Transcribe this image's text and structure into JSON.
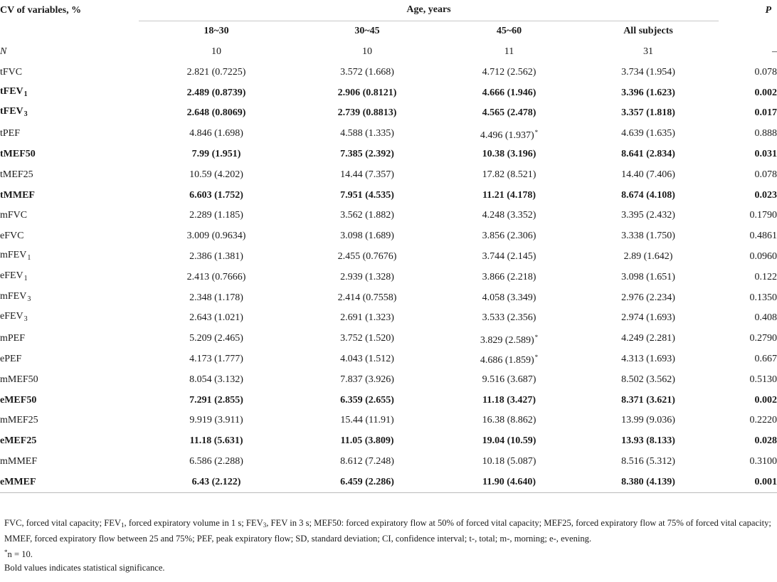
{
  "table": {
    "header": {
      "first_col": "CV of variables, %",
      "age_group": "Age, years",
      "p_col": "P",
      "groups": [
        "18~30",
        "30~45",
        "45~60",
        "All subjects"
      ]
    },
    "rows": [
      {
        "label": "N",
        "sub": "",
        "italic": true,
        "bold": false,
        "values": [
          "10",
          "10",
          "11",
          "31"
        ],
        "star": [
          false,
          false,
          false,
          false
        ],
        "p": "–"
      },
      {
        "label": "tFVC",
        "sub": "",
        "italic": false,
        "bold": false,
        "values": [
          "2.821 (0.7225)",
          "3.572 (1.668)",
          "4.712 (2.562)",
          "3.734 (1.954)"
        ],
        "star": [
          false,
          false,
          false,
          false
        ],
        "p": "0.078"
      },
      {
        "label": "tFEV",
        "sub": "1",
        "italic": false,
        "bold": true,
        "values": [
          "2.489 (0.8739)",
          "2.906 (0.8121)",
          "4.666 (1.946)",
          "3.396 (1.623)"
        ],
        "star": [
          false,
          false,
          false,
          false
        ],
        "p": "0.002"
      },
      {
        "label": "tFEV",
        "sub": "3",
        "italic": false,
        "bold": true,
        "values": [
          "2.648 (0.8069)",
          "2.739 (0.8813)",
          "4.565 (2.478)",
          "3.357 (1.818)"
        ],
        "star": [
          false,
          false,
          false,
          false
        ],
        "p": "0.017"
      },
      {
        "label": "tPEF",
        "sub": "",
        "italic": false,
        "bold": false,
        "values": [
          "4.846 (1.698)",
          "4.588 (1.335)",
          "4.496 (1.937)",
          "4.639 (1.635)"
        ],
        "star": [
          false,
          false,
          true,
          false
        ],
        "p": "0.888"
      },
      {
        "label": "tMEF50",
        "sub": "",
        "italic": false,
        "bold": true,
        "values": [
          "7.99 (1.951)",
          "7.385 (2.392)",
          "10.38 (3.196)",
          "8.641 (2.834)"
        ],
        "star": [
          false,
          false,
          false,
          false
        ],
        "p": "0.031"
      },
      {
        "label": "tMEF25",
        "sub": "",
        "italic": false,
        "bold": false,
        "values": [
          "10.59 (4.202)",
          "14.44 (7.357)",
          "17.82 (8.521)",
          "14.40 (7.406)"
        ],
        "star": [
          false,
          false,
          false,
          false
        ],
        "p": "0.078"
      },
      {
        "label": "tMMEF",
        "sub": "",
        "italic": false,
        "bold": true,
        "values": [
          "6.603 (1.752)",
          "7.951 (4.535)",
          "11.21 (4.178)",
          "8.674 (4.108)"
        ],
        "star": [
          false,
          false,
          false,
          false
        ],
        "p": "0.023"
      },
      {
        "label": "mFVC",
        "sub": "",
        "italic": false,
        "bold": false,
        "values": [
          "2.289 (1.185)",
          "3.562 (1.882)",
          "4.248 (3.352)",
          "3.395 (2.432)"
        ],
        "star": [
          false,
          false,
          false,
          false
        ],
        "p": "0.1790"
      },
      {
        "label": "eFVC",
        "sub": "",
        "italic": false,
        "bold": false,
        "values": [
          "3.009 (0.9634)",
          "3.098 (1.689)",
          "3.856 (2.306)",
          "3.338 (1.750)"
        ],
        "star": [
          false,
          false,
          false,
          false
        ],
        "p": "0.4861"
      },
      {
        "label": "mFEV",
        "sub": "1",
        "italic": false,
        "bold": false,
        "values": [
          "2.386 (1.381)",
          "2.455 (0.7676)",
          "3.744 (2.145)",
          "2.89 (1.642)"
        ],
        "star": [
          false,
          false,
          false,
          false
        ],
        "p": "0.0960"
      },
      {
        "label": "eFEV",
        "sub": "1",
        "italic": false,
        "bold": false,
        "values": [
          "2.413 (0.7666)",
          "2.939 (1.328)",
          "3.866 (2.218)",
          "3.098 (1.651)"
        ],
        "star": [
          false,
          false,
          false,
          false
        ],
        "p": "0.122"
      },
      {
        "label": "mFEV",
        "sub": "3",
        "italic": false,
        "bold": false,
        "values": [
          "2.348 (1.178)",
          "2.414 (0.7558)",
          "4.058 (3.349)",
          "2.976 (2.234)"
        ],
        "star": [
          false,
          false,
          false,
          false
        ],
        "p": "0.1350"
      },
      {
        "label": "eFEV",
        "sub": "3",
        "italic": false,
        "bold": false,
        "values": [
          "2.643 (1.021)",
          "2.691 (1.323)",
          "3.533 (2.356)",
          "2.974 (1.693)"
        ],
        "star": [
          false,
          false,
          false,
          false
        ],
        "p": "0.408"
      },
      {
        "label": "mPEF",
        "sub": "",
        "italic": false,
        "bold": false,
        "values": [
          "5.209 (2.465)",
          "3.752 (1.520)",
          "3.829 (2.589)",
          "4.249 (2.281)"
        ],
        "star": [
          false,
          false,
          true,
          false
        ],
        "p": "0.2790"
      },
      {
        "label": "ePEF",
        "sub": "",
        "italic": false,
        "bold": false,
        "values": [
          "4.173 (1.777)",
          "4.043 (1.512)",
          "4.686 (1.859)",
          "4.313 (1.693)"
        ],
        "star": [
          false,
          false,
          true,
          false
        ],
        "p": "0.667"
      },
      {
        "label": "mMEF50",
        "sub": "",
        "italic": false,
        "bold": false,
        "values": [
          "8.054 (3.132)",
          "7.837 (3.926)",
          "9.516 (3.687)",
          "8.502 (3.562)"
        ],
        "star": [
          false,
          false,
          false,
          false
        ],
        "p": "0.5130"
      },
      {
        "label": "eMEF50",
        "sub": "",
        "italic": false,
        "bold": true,
        "values": [
          "7.291 (2.855)",
          "6.359 (2.655)",
          "11.18 (3.427)",
          "8.371 (3.621)"
        ],
        "star": [
          false,
          false,
          false,
          false
        ],
        "p": "0.002"
      },
      {
        "label": "mMEF25",
        "sub": "",
        "italic": false,
        "bold": false,
        "values": [
          "9.919 (3.911)",
          "15.44 (11.91)",
          "16.38 (8.862)",
          "13.99 (9.036)"
        ],
        "star": [
          false,
          false,
          false,
          false
        ],
        "p": "0.2220"
      },
      {
        "label": "eMEF25",
        "sub": "",
        "italic": false,
        "bold": true,
        "values": [
          "11.18 (5.631)",
          "11.05 (3.809)",
          "19.04 (10.59)",
          "13.93 (8.133)"
        ],
        "star": [
          false,
          false,
          false,
          false
        ],
        "p": "0.028"
      },
      {
        "label": "mMMEF",
        "sub": "",
        "italic": false,
        "bold": false,
        "values": [
          "6.586 (2.288)",
          "8.612 (7.248)",
          "10.18 (5.087)",
          "8.516 (5.312)"
        ],
        "star": [
          false,
          false,
          false,
          false
        ],
        "p": "0.3100"
      },
      {
        "label": "eMMEF",
        "sub": "",
        "italic": false,
        "bold": true,
        "values": [
          "6.43 (2.122)",
          "6.459 (2.286)",
          "11.90 (4.640)",
          "8.380 (4.139)"
        ],
        "star": [
          false,
          false,
          false,
          false
        ],
        "p": "0.001"
      }
    ],
    "star_symbol": "*"
  },
  "footnotes": {
    "line1_parts": [
      "FVC, forced vital capacity; FEV",
      "1",
      ", forced expiratory volume in 1 s; FEV",
      "3",
      ", FEV in 3 s; MEF50: forced expiratory flow at 50% of forced vital capacity; MEF25, forced expiratory flow at 75% of forced vital capacity; MMEF, forced expiratory flow between 25 and 75%; PEF, peak expiratory flow; SD, standard deviation; CI, confidence interval; t-, total; m-, morning; e-, evening."
    ],
    "star_note_symbol": "*",
    "star_note_text": "n = 10.",
    "bold_note": "Bold values indicates statistical significance."
  }
}
